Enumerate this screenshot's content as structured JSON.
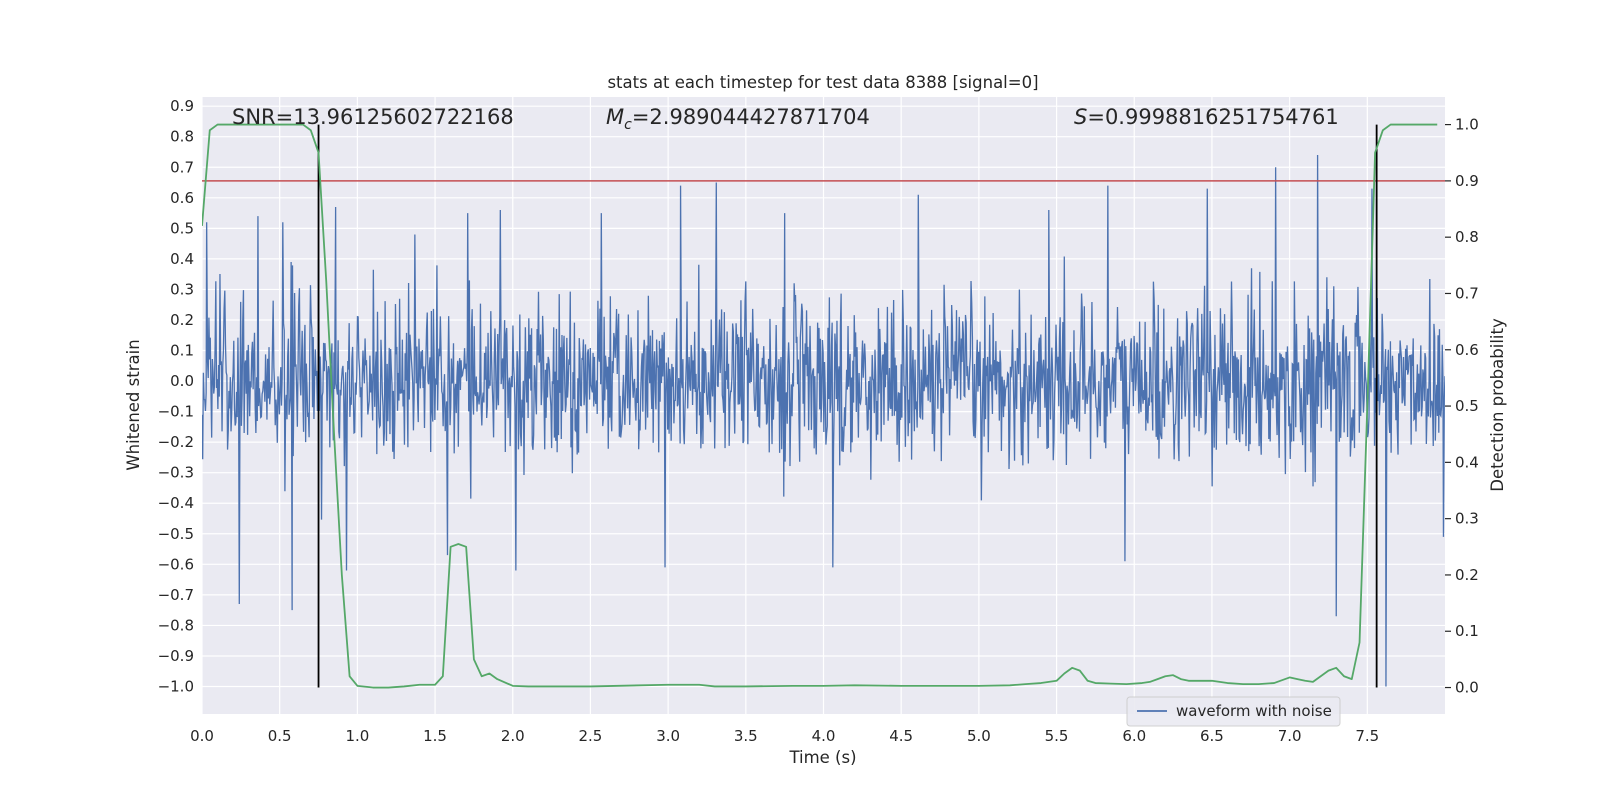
{
  "chart_data": {
    "type": "line",
    "title": "stats at each timestep for test data 8388 [signal=0]",
    "xlabel": "Time (s)",
    "ylabel": "Whitened strain",
    "y2label": "Detection probability",
    "xlim": [
      0.0,
      8.0
    ],
    "ylim": [
      -1.09,
      0.93
    ],
    "y2lim": [
      -0.047,
      1.049
    ],
    "xticks": [
      "0.0",
      "0.5",
      "1.0",
      "1.5",
      "2.0",
      "2.5",
      "3.0",
      "3.5",
      "4.0",
      "4.5",
      "5.0",
      "5.5",
      "6.0",
      "6.5",
      "7.0",
      "7.5"
    ],
    "yticks": [
      "-1.0",
      "-0.9",
      "-0.8",
      "-0.7",
      "-0.6",
      "-0.5",
      "-0.4",
      "-0.3",
      "-0.2",
      "-0.1",
      "0.0",
      "0.1",
      "0.2",
      "0.3",
      "0.4",
      "0.5",
      "0.6",
      "0.7",
      "0.8",
      "0.9"
    ],
    "y2ticks": [
      "0.0",
      "0.1",
      "0.2",
      "0.3",
      "0.4",
      "0.5",
      "0.6",
      "0.7",
      "0.8",
      "0.9",
      "1.0"
    ],
    "grid": true,
    "legend": {
      "position": "lower-right",
      "entries": [
        "waveform with noise"
      ]
    },
    "annotations": {
      "snr": {
        "prefix": "SNR=",
        "value": "13.96125602722168"
      },
      "mc": {
        "symbol": "M",
        "subscript": "c",
        "value": "=2.989044427871704"
      },
      "s": {
        "symbol": "S",
        "value": "=0.9998816251754761"
      }
    },
    "threshold_line": {
      "value": 0.9,
      "axis": "right",
      "color": "#c44e52"
    },
    "vertical_lines": [
      0.75,
      7.56
    ],
    "series": [
      {
        "name": "waveform with noise",
        "axis": "left",
        "color": "#4c72b0",
        "kind": "noise",
        "n": 1800,
        "sigma": 0.13,
        "peaks": [
          {
            "x": 0.03,
            "y": 0.52
          },
          {
            "x": 0.24,
            "y": -0.73
          },
          {
            "x": 0.36,
            "y": 0.54
          },
          {
            "x": 0.52,
            "y": 0.52
          },
          {
            "x": 0.58,
            "y": -0.75
          },
          {
            "x": 0.75,
            "y": 0.4
          },
          {
            "x": 0.86,
            "y": 0.57
          },
          {
            "x": 0.93,
            "y": -0.62
          },
          {
            "x": 1.37,
            "y": 0.48
          },
          {
            "x": 1.58,
            "y": -0.57
          },
          {
            "x": 1.71,
            "y": 0.55
          },
          {
            "x": 1.92,
            "y": 0.56
          },
          {
            "x": 2.02,
            "y": -0.62
          },
          {
            "x": 2.57,
            "y": 0.55
          },
          {
            "x": 2.98,
            "y": -0.61
          },
          {
            "x": 3.08,
            "y": 0.64
          },
          {
            "x": 3.31,
            "y": 0.65
          },
          {
            "x": 3.75,
            "y": 0.55
          },
          {
            "x": 4.06,
            "y": -0.61
          },
          {
            "x": 4.61,
            "y": 0.61
          },
          {
            "x": 5.45,
            "y": 0.56
          },
          {
            "x": 5.83,
            "y": 0.64
          },
          {
            "x": 5.94,
            "y": -0.59
          },
          {
            "x": 6.47,
            "y": 0.63
          },
          {
            "x": 6.91,
            "y": 0.7
          },
          {
            "x": 7.18,
            "y": 0.74
          },
          {
            "x": 7.3,
            "y": -0.77
          },
          {
            "x": 7.53,
            "y": 0.63
          },
          {
            "x": 7.62,
            "y": -1.0
          },
          {
            "x": 7.99,
            "y": -0.51
          }
        ]
      },
      {
        "name": "",
        "axis": "right",
        "color": "#55a868",
        "kind": "line",
        "x": [
          0.0,
          0.05,
          0.1,
          0.15,
          0.2,
          0.25,
          0.3,
          0.35,
          0.4,
          0.45,
          0.5,
          0.55,
          0.6,
          0.65,
          0.7,
          0.75,
          0.8,
          0.85,
          0.9,
          0.95,
          1.0,
          1.1,
          1.2,
          1.3,
          1.4,
          1.5,
          1.55,
          1.6,
          1.65,
          1.7,
          1.75,
          1.8,
          1.85,
          1.9,
          2.0,
          2.1,
          2.5,
          3.0,
          3.2,
          3.3,
          3.5,
          3.8,
          4.0,
          4.2,
          4.5,
          4.8,
          5.0,
          5.2,
          5.3,
          5.4,
          5.5,
          5.55,
          5.6,
          5.65,
          5.7,
          5.75,
          5.85,
          5.95,
          6.05,
          6.1,
          6.15,
          6.2,
          6.25,
          6.3,
          6.35,
          6.4,
          6.5,
          6.6,
          6.7,
          6.8,
          6.9,
          7.0,
          7.05,
          7.1,
          7.15,
          7.2,
          7.25,
          7.3,
          7.35,
          7.4,
          7.45,
          7.5,
          7.55,
          7.6,
          7.65,
          7.7,
          7.8,
          7.95
        ],
        "values": [
          0.82,
          0.99,
          1.0,
          1.0,
          1.0,
          1.0,
          1.0,
          1.0,
          1.0,
          1.0,
          1.0,
          1.0,
          1.0,
          1.0,
          0.99,
          0.95,
          0.72,
          0.45,
          0.2,
          0.02,
          0.003,
          0.0,
          0.0,
          0.002,
          0.005,
          0.005,
          0.02,
          0.25,
          0.255,
          0.25,
          0.05,
          0.02,
          0.025,
          0.015,
          0.003,
          0.002,
          0.002,
          0.005,
          0.005,
          0.002,
          0.002,
          0.003,
          0.003,
          0.004,
          0.003,
          0.003,
          0.003,
          0.004,
          0.006,
          0.008,
          0.012,
          0.025,
          0.035,
          0.03,
          0.012,
          0.008,
          0.007,
          0.006,
          0.008,
          0.01,
          0.015,
          0.02,
          0.022,
          0.015,
          0.012,
          0.012,
          0.012,
          0.008,
          0.006,
          0.006,
          0.008,
          0.018,
          0.015,
          0.012,
          0.01,
          0.02,
          0.03,
          0.035,
          0.02,
          0.015,
          0.08,
          0.5,
          0.95,
          0.99,
          1.0,
          1.0,
          1.0,
          1.0
        ]
      }
    ]
  }
}
